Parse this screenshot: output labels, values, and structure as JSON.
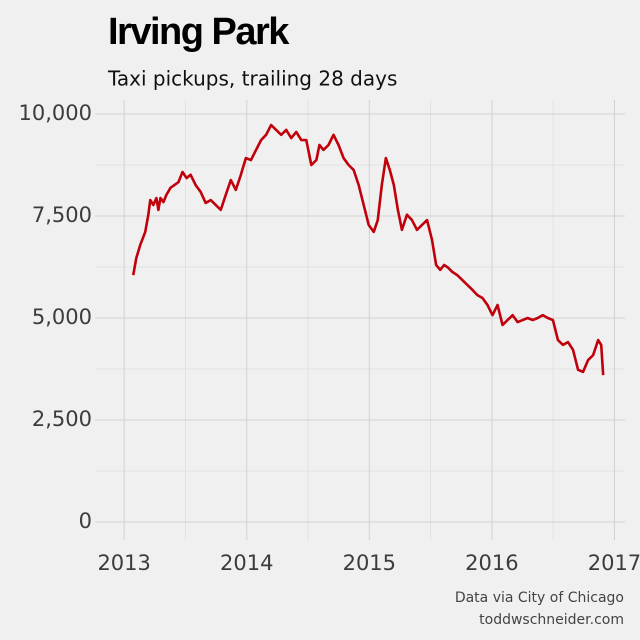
{
  "chart_data": {
    "type": "line",
    "title": "Irving Park",
    "subtitle": "Taxi pickups, trailing 28 days",
    "source": [
      "Data via City of Chicago",
      "toddwschneider.com"
    ],
    "x": [
      2013.074,
      2013.099,
      2013.131,
      2013.172,
      2013.197,
      2013.213,
      2013.238,
      2013.263,
      2013.279,
      2013.296,
      2013.32,
      2013.345,
      2013.378,
      2013.411,
      2013.443,
      2013.476,
      2013.509,
      2013.542,
      2013.583,
      2013.624,
      2013.665,
      2013.706,
      2013.747,
      2013.788,
      2013.829,
      2013.87,
      2013.911,
      2013.952,
      2013.993,
      2014.034,
      2014.076,
      2014.117,
      2014.158,
      2014.199,
      2014.24,
      2014.281,
      2014.322,
      2014.363,
      2014.404,
      2014.445,
      2014.486,
      2014.527,
      2014.568,
      2014.593,
      2014.626,
      2014.667,
      2014.708,
      2014.749,
      2014.79,
      2014.831,
      2014.872,
      2014.913,
      2014.954,
      2014.995,
      2015.036,
      2015.069,
      2015.102,
      2015.135,
      2015.167,
      2015.2,
      2015.233,
      2015.266,
      2015.307,
      2015.348,
      2015.389,
      2015.43,
      2015.471,
      2015.512,
      2015.545,
      2015.578,
      2015.611,
      2015.644,
      2015.677,
      2015.718,
      2015.759,
      2015.8,
      2015.841,
      2015.882,
      2015.923,
      2015.964,
      2016.005,
      2016.046,
      2016.087,
      2016.128,
      2016.169,
      2016.21,
      2016.251,
      2016.292,
      2016.333,
      2016.374,
      2016.415,
      2016.456,
      2016.498,
      2016.539,
      2016.58,
      2016.621,
      2016.662,
      2016.703,
      2016.744,
      2016.785,
      2016.826,
      2016.867,
      2016.892,
      2016.908
    ],
    "series": [
      {
        "color": "#c0000b",
        "values": [
          6050,
          6470,
          6790,
          7110,
          7530,
          7890,
          7770,
          7940,
          7650,
          7940,
          7840,
          8020,
          8190,
          8260,
          8330,
          8580,
          8430,
          8510,
          8260,
          8090,
          7820,
          7890,
          7770,
          7650,
          8020,
          8380,
          8140,
          8510,
          8920,
          8870,
          9120,
          9360,
          9490,
          9730,
          9610,
          9490,
          9610,
          9410,
          9560,
          9360,
          9360,
          8750,
          8870,
          9240,
          9120,
          9240,
          9490,
          9240,
          8920,
          8750,
          8630,
          8260,
          7770,
          7280,
          7110,
          7400,
          8260,
          8920,
          8630,
          8260,
          7650,
          7160,
          7530,
          7400,
          7160,
          7280,
          7400,
          6910,
          6300,
          6180,
          6300,
          6230,
          6130,
          6050,
          5930,
          5810,
          5690,
          5560,
          5490,
          5320,
          5070,
          5320,
          4830,
          4950,
          5070,
          4900,
          4950,
          5000,
          4950,
          5000,
          5070,
          5000,
          4950,
          4460,
          4340,
          4410,
          4220,
          3730,
          3680,
          3970,
          4090,
          4460,
          4340,
          3600
        ]
      }
    ],
    "xlim": [
      2012.762,
      2017.086
    ],
    "ylim": [
      -441,
      10343
    ],
    "xticks": [
      2013,
      2014,
      2015,
      2016,
      2017
    ],
    "yticks": [
      0,
      {
        "value": 2500,
        "label": "2,500"
      },
      {
        "value": 5000,
        "label": "5,000"
      },
      {
        "value": 7500,
        "label": "7,500"
      },
      {
        "value": 10000,
        "label": "10,000"
      }
    ],
    "grid": true,
    "minor_grid": true
  }
}
